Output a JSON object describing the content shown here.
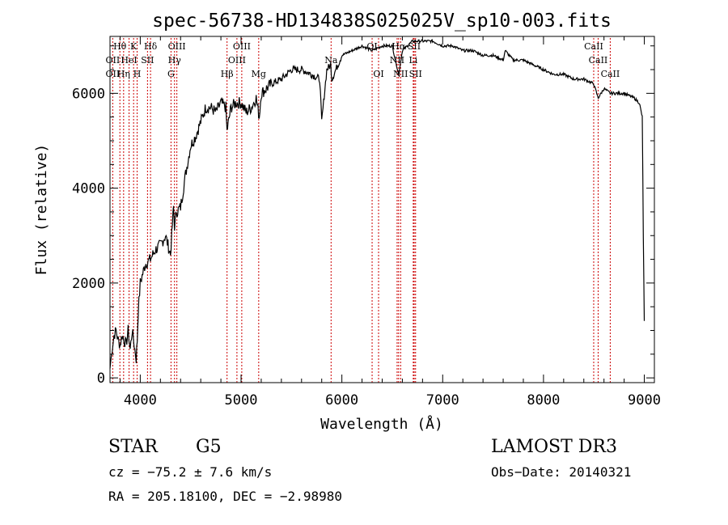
{
  "chart_data": {
    "type": "line",
    "title": "spec-56738-HD134838S025025V_sp10-003.fits",
    "xlabel": "Wavelength (Å)",
    "ylabel": "Flux (relative)",
    "xlim": [
      3700,
      9100
    ],
    "ylim": [
      -100,
      7200
    ],
    "xticks": [
      4000,
      5000,
      6000,
      7000,
      8000,
      9000
    ],
    "yticks": [
      0,
      2000,
      4000,
      6000
    ],
    "grid": false,
    "series": [
      {
        "x": [
          3700,
          3720,
          3740,
          3760,
          3780,
          3800,
          3820,
          3840,
          3860,
          3880,
          3900,
          3920,
          3940,
          3960,
          3970,
          3980,
          4000,
          4050,
          4100,
          4150,
          4200,
          4250,
          4300,
          4330,
          4340,
          4360,
          4400,
          4450,
          4500,
          4550,
          4600,
          4650,
          4700,
          4750,
          4800,
          4850,
          4860,
          4900,
          4950,
          5000,
          5050,
          5100,
          5150,
          5180,
          5200,
          5300,
          5400,
          5500,
          5600,
          5700,
          5780,
          5800,
          5850,
          5890,
          5900,
          6000,
          6100,
          6200,
          6300,
          6400,
          6500,
          6563,
          6600,
          6700,
          6800,
          6900,
          7000,
          7100,
          7200,
          7300,
          7400,
          7500,
          7600,
          7620,
          7700,
          7800,
          7900,
          8000,
          8100,
          8200,
          8300,
          8400,
          8498,
          8542,
          8600,
          8662,
          8700,
          8800,
          8900,
          8950,
          8980,
          8990,
          9000
        ],
        "y": [
          200,
          600,
          900,
          1000,
          800,
          700,
          900,
          800,
          700,
          1000,
          600,
          1000,
          700,
          400,
          800,
          1400,
          2000,
          2400,
          2500,
          2700,
          2800,
          3000,
          2600,
          3600,
          3200,
          3500,
          3600,
          4300,
          4900,
          5100,
          5400,
          5700,
          5700,
          5600,
          5800,
          5700,
          5200,
          5700,
          5800,
          5800,
          5600,
          5700,
          5900,
          5500,
          6000,
          6200,
          6300,
          6500,
          6500,
          6400,
          6300,
          5400,
          6500,
          6600,
          6300,
          6800,
          6900,
          7000,
          6900,
          7000,
          7000,
          6400,
          6900,
          7100,
          7100,
          7100,
          7000,
          7000,
          6900,
          6900,
          6800,
          6800,
          6700,
          6900,
          6700,
          6700,
          6600,
          6500,
          6400,
          6400,
          6300,
          6300,
          6200,
          5900,
          6100,
          6000,
          6000,
          6000,
          5900,
          5800,
          5500,
          3000,
          1200
        ]
      }
    ],
    "annotations": [
      {
        "text": "Hθ",
        "x": 3798,
        "row": 1
      },
      {
        "text": "K",
        "x": 3934,
        "row": 1
      },
      {
        "text": "Hδ",
        "x": 4102,
        "row": 1
      },
      {
        "text": "OIII",
        "x": 4363,
        "row": 1
      },
      {
        "text": "OIII",
        "x": 5007,
        "row": 1
      },
      {
        "text": "OI",
        "x": 6300,
        "row": 1
      },
      {
        "text": "Hα",
        "x": 6563,
        "row": 1
      },
      {
        "text": "SII",
        "x": 6717,
        "row": 1
      },
      {
        "text": "CaII",
        "x": 8498,
        "row": 1
      },
      {
        "text": "OII",
        "x": 3727,
        "row": 2
      },
      {
        "text": "HeI",
        "x": 3889,
        "row": 2
      },
      {
        "text": "SII",
        "x": 4072,
        "row": 2
      },
      {
        "text": "Hγ",
        "x": 4340,
        "row": 2
      },
      {
        "text": "OIII",
        "x": 4959,
        "row": 2
      },
      {
        "text": "Na",
        "x": 5893,
        "row": 2
      },
      {
        "text": "NII",
        "x": 6548,
        "row": 2
      },
      {
        "text": "Li",
        "x": 6708,
        "row": 2
      },
      {
        "text": "CaII",
        "x": 8542,
        "row": 2
      },
      {
        "text": "OII",
        "x": 3727,
        "row": 3
      },
      {
        "text": "Hη",
        "x": 3835,
        "row": 3
      },
      {
        "text": "H",
        "x": 3969,
        "row": 3
      },
      {
        "text": "G",
        "x": 4305,
        "row": 3
      },
      {
        "text": "Hβ",
        "x": 4861,
        "row": 3
      },
      {
        "text": "Mg",
        "x": 5175,
        "row": 3
      },
      {
        "text": "OI",
        "x": 6364,
        "row": 3
      },
      {
        "text": "NII",
        "x": 6583,
        "row": 3
      },
      {
        "text": "SII",
        "x": 6731,
        "row": 3
      },
      {
        "text": "CaII",
        "x": 8662,
        "row": 3
      }
    ],
    "line_markers": [
      3727,
      3798,
      3835,
      3889,
      3934,
      3969,
      4072,
      4102,
      4305,
      4340,
      4363,
      4861,
      4959,
      5007,
      5175,
      5893,
      6300,
      6364,
      6548,
      6563,
      6583,
      6708,
      6717,
      6731,
      8498,
      8542,
      8662
    ],
    "marker_color": "#cc0000",
    "line_color": "#000000"
  },
  "info": {
    "class": "STAR",
    "subclass": "G5",
    "survey": "LAMOST DR3",
    "cz": "cz = −75.2 ± 7.6 km/s",
    "obsdate": "Obs−Date: 20140321",
    "coords": "RA = 205.18100, DEC =  −2.98980"
  }
}
